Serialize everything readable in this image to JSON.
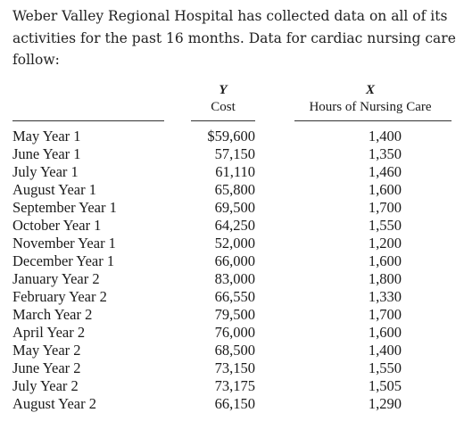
{
  "intro": {
    "text": "Weber Valley Regional Hospital has collected data on all of its activities for the past 16 months. Data for cardiac nursing care follow:"
  },
  "table": {
    "columns": [
      {
        "variable": "Y",
        "label": "Cost"
      },
      {
        "variable": "X",
        "label": "Hours of Nursing Care"
      }
    ],
    "rows": [
      {
        "month": "May Year 1",
        "cost": "$59,600",
        "hours": "1,400"
      },
      {
        "month": "June Year 1",
        "cost": "57,150",
        "hours": "1,350"
      },
      {
        "month": "July Year 1",
        "cost": "61,110",
        "hours": "1,460"
      },
      {
        "month": "August Year 1",
        "cost": "65,800",
        "hours": "1,600"
      },
      {
        "month": "September Year 1",
        "cost": "69,500",
        "hours": "1,700"
      },
      {
        "month": "October Year 1",
        "cost": "64,250",
        "hours": "1,550"
      },
      {
        "month": "November Year 1",
        "cost": "52,000",
        "hours": "1,200"
      },
      {
        "month": "December Year 1",
        "cost": "66,000",
        "hours": "1,600"
      },
      {
        "month": "January Year 2",
        "cost": "83,000",
        "hours": "1,800"
      },
      {
        "month": "February Year 2",
        "cost": "66,550",
        "hours": "1,330"
      },
      {
        "month": "March Year 2",
        "cost": "79,500",
        "hours": "1,700"
      },
      {
        "month": "April Year 2",
        "cost": "76,000",
        "hours": "1,600"
      },
      {
        "month": "May Year 2",
        "cost": "68,500",
        "hours": "1,400"
      },
      {
        "month": "June Year 2",
        "cost": "73,150",
        "hours": "1,550"
      },
      {
        "month": "July Year 2",
        "cost": "73,175",
        "hours": "1,505"
      },
      {
        "month": "August Year 2",
        "cost": "66,150",
        "hours": "1,290"
      }
    ]
  }
}
